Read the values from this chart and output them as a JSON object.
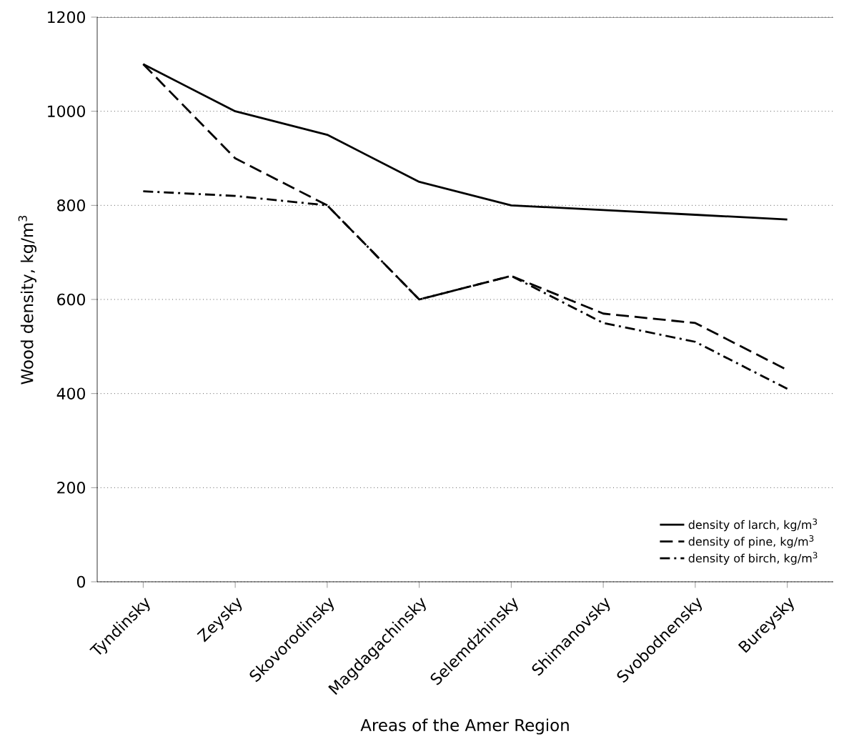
{
  "chart_data": {
    "type": "line",
    "xlabel": "Areas of the Amer Region",
    "ylabel": "Wood density, kg/m$^{3}$",
    "categories": [
      "Tyndinsky",
      "Zeysky",
      "Skovorodinsky",
      "Magdagachinsky",
      "Selemdzhinsky",
      "Shimanovsky",
      "Svobodnensky",
      "Bureysky"
    ],
    "series": [
      {
        "name": "density of larch, kg/m$^{3}$",
        "color": "#000000",
        "line_style": "solid",
        "values": [
          1100,
          1000,
          950,
          850,
          800,
          790,
          780,
          770
        ]
      },
      {
        "name": "density of pine, kg/m$^{3}$",
        "color": "#000000",
        "line_style": "dashed",
        "values": [
          1100,
          900,
          800,
          600,
          650,
          570,
          550,
          450
        ]
      },
      {
        "name": "density of birch, kg/m$^{3}$",
        "color": "#000000",
        "line_style": "dashdot",
        "values": [
          830,
          820,
          800,
          600,
          650,
          550,
          510,
          410
        ]
      }
    ],
    "ylim": [
      0,
      1200
    ],
    "yticks": [
      0,
      200,
      400,
      600,
      800,
      1000,
      1200
    ],
    "grid": "y",
    "legend": "bottom right",
    "marker": "none"
  }
}
